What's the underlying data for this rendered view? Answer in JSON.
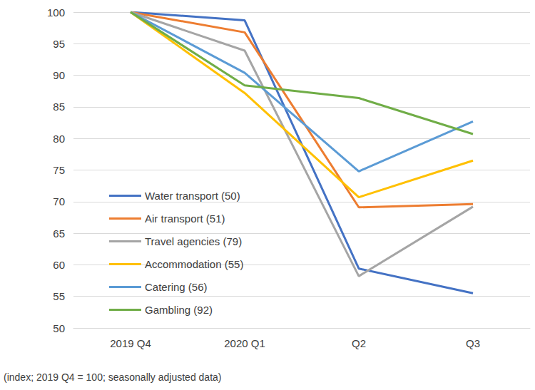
{
  "chart_data": {
    "type": "line",
    "subtitle": "(index; 2019 Q4 = 100; seasonally adjusted data)",
    "categories": [
      "2019 Q4",
      "2020 Q1",
      "Q2",
      "Q3"
    ],
    "series": [
      {
        "name": "Water transport (50)",
        "color": "#4472c4",
        "values": [
          100,
          98.7,
          59.4,
          55.5
        ]
      },
      {
        "name": "Air transport (51)",
        "color": "#ed7d31",
        "values": [
          100,
          96.8,
          69.1,
          69.6
        ]
      },
      {
        "name": "Travel agencies (79)",
        "color": "#a5a5a5",
        "values": [
          100,
          93.9,
          58.2,
          69.2
        ]
      },
      {
        "name": "Accommodation (55)",
        "color": "#ffc000",
        "values": [
          100,
          87.2,
          70.7,
          76.5
        ]
      },
      {
        "name": "Catering (56)",
        "color": "#5b9bd5",
        "values": [
          100,
          90.4,
          74.8,
          82.7
        ]
      },
      {
        "name": "Gambling (92)",
        "color": "#70ad47",
        "values": [
          100,
          88.4,
          86.4,
          80.7
        ]
      }
    ],
    "ylim": [
      50,
      100
    ],
    "yticks": [
      50,
      55,
      60,
      65,
      70,
      75,
      80,
      85,
      90,
      95,
      100
    ],
    "grid": true,
    "legend": "left"
  }
}
